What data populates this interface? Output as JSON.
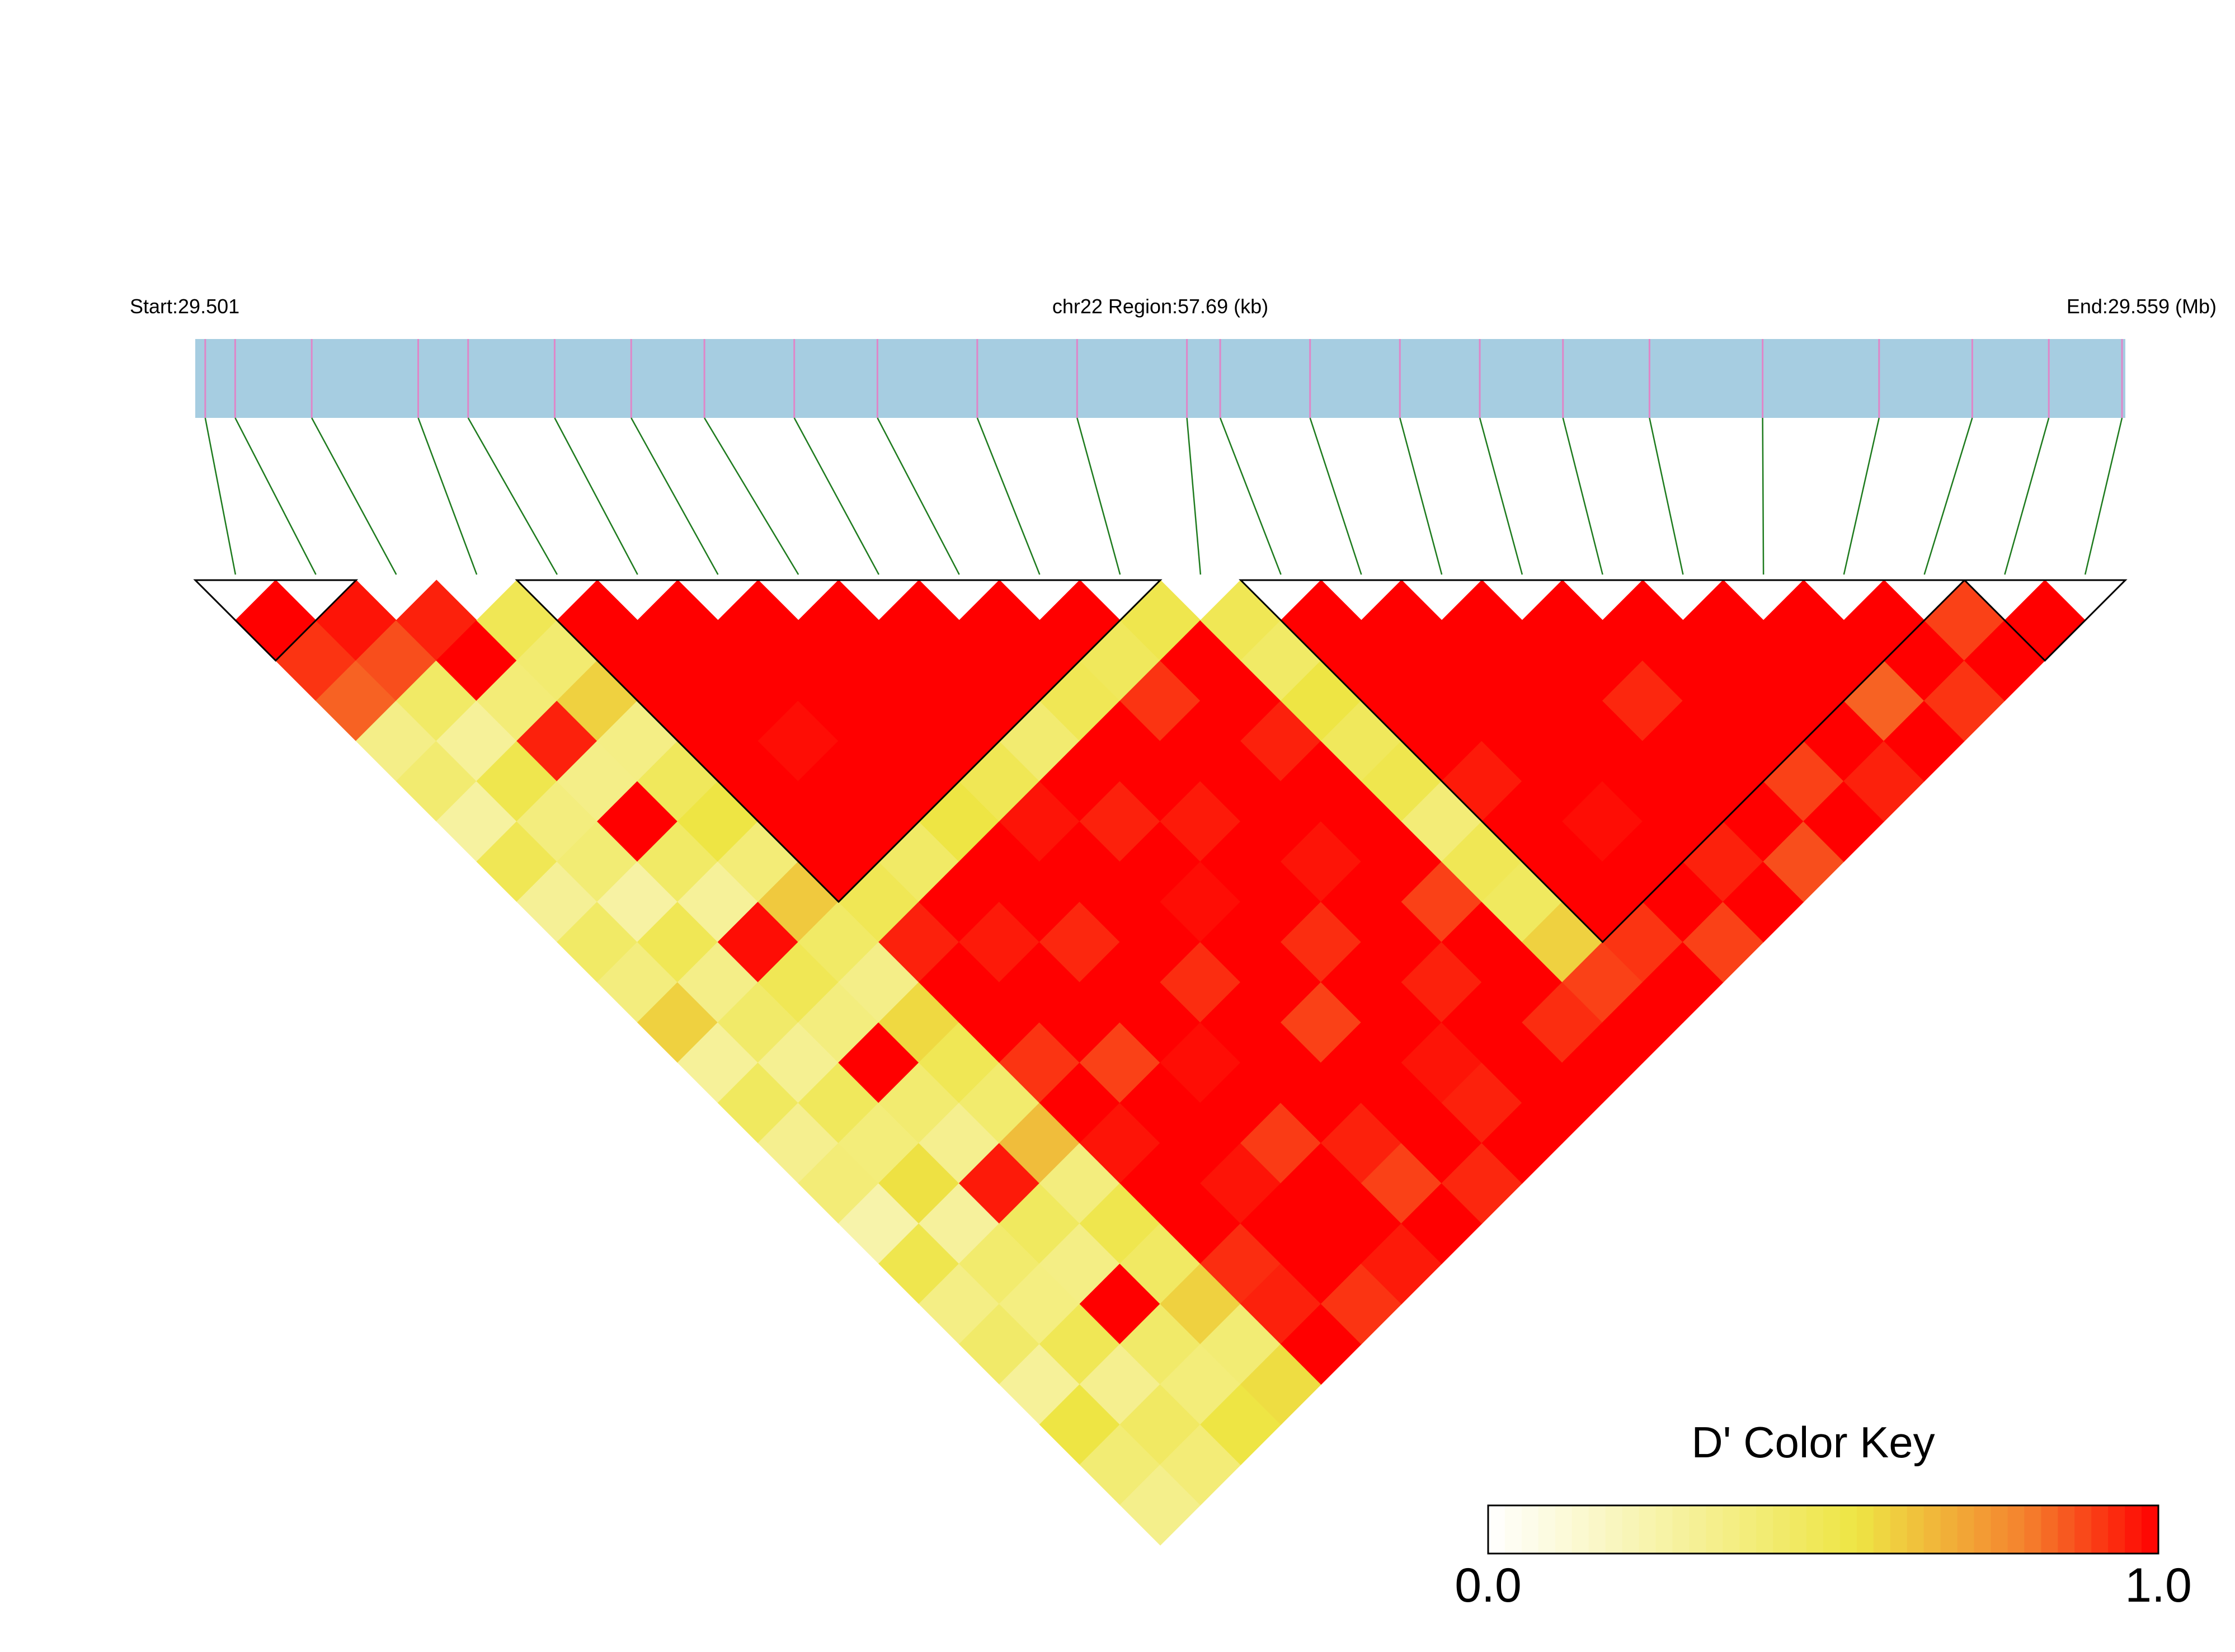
{
  "chart_data": {
    "type": "ld_heatmap",
    "title": "chr22 Region:57.69 (kb)",
    "start": {
      "value": 29.501,
      "label": "Start:29.501"
    },
    "end": {
      "value": 29.559,
      "label": "End:29.559 (Mb)"
    },
    "positions": [
      29.5013,
      29.5022,
      29.5045,
      29.5077,
      29.5092,
      29.5118,
      29.5141,
      29.5163,
      29.519,
      29.5215,
      29.5245,
      29.5275,
      29.5308,
      29.5318,
      29.5345,
      29.5372,
      29.5396,
      29.5421,
      29.5447,
      29.5481,
      29.5516,
      29.5544,
      29.5567,
      29.5589
    ],
    "dprime": [
      [
        1,
        0.92,
        0.85,
        0.35,
        0.42,
        0.28,
        0.5,
        0.31,
        0.45,
        0.38,
        0.6,
        0.3,
        0.47,
        0.33,
        0.4,
        0.25,
        0.52,
        0.36,
        0.44,
        0.3,
        0.55,
        0.41,
        0.34
      ],
      [
        0.97,
        0.88,
        0.45,
        0.3,
        0.52,
        0.38,
        0.41,
        0.27,
        0.5,
        0.35,
        0.44,
        0.32,
        0.48,
        0.39,
        0.56,
        0.29,
        0.43,
        0.37,
        0.5,
        0.33,
        0.46,
        0.4
      ],
      [
        0.95,
        1,
        0.4,
        0.95,
        0.35,
        1,
        0.45,
        0.3,
        0.98,
        0.5,
        0.38,
        1,
        0.42,
        0.33,
        0.96,
        0.47,
        0.36,
        1,
        0.44,
        0.39,
        0.55
      ],
      [
        0.5,
        0.42,
        0.6,
        0.36,
        0.48,
        0.55,
        0.4,
        0.62,
        0.45,
        0.35,
        0.58,
        0.5,
        0.43,
        0.65,
        0.38,
        0.52,
        0.46,
        0.6,
        0.41,
        0.57
      ],
      [
        1,
        1,
        1,
        1,
        1,
        1,
        1,
        0.5,
        0.95,
        1,
        1,
        0.92,
        1,
        0.97,
        1,
        1,
        0.93,
        0.95,
        1
      ],
      [
        1,
        1,
        1,
        0.98,
        1,
        1,
        0.45,
        1,
        0.96,
        1,
        1,
        0.9,
        1,
        1,
        0.97,
        1,
        1,
        0.92
      ],
      [
        1,
        1,
        1,
        1,
        1,
        0.55,
        1,
        1,
        0.94,
        1,
        1,
        0.98,
        1,
        0.91,
        1,
        1,
        0.96
      ],
      [
        1,
        1,
        1,
        1,
        0.5,
        0.97,
        1,
        1,
        1,
        0.93,
        1,
        1,
        1,
        0.95,
        0.9,
        1
      ],
      [
        1,
        1,
        1,
        0.42,
        1,
        0.95,
        1,
        0.98,
        1,
        1,
        0.9,
        1,
        1,
        1,
        0.94
      ],
      [
        1,
        1,
        0.5,
        1,
        1,
        0.96,
        1,
        1,
        0.93,
        1,
        1,
        0.97,
        0.95,
        1
      ],
      [
        1,
        0.48,
        0.92,
        1,
        1,
        1,
        0.97,
        1,
        1,
        0.95,
        1,
        1,
        1
      ],
      [
        0.52,
        1,
        1,
        0.95,
        1,
        1,
        1,
        0.9,
        1,
        1,
        0.93,
        1
      ],
      [
        0.5,
        0.45,
        0.55,
        0.48,
        0.52,
        0.4,
        0.5,
        0.47,
        0.6,
        0.9,
        1
      ],
      [
        1,
        1,
        1,
        1,
        0.96,
        1,
        1,
        1,
        0.92,
        1
      ],
      [
        1,
        1,
        1,
        1,
        1,
        0.98,
        1,
        1,
        0.9
      ],
      [
        1,
        1,
        1,
        1,
        1,
        1,
        0.95,
        1
      ],
      [
        1,
        1,
        0.94,
        1,
        1,
        1,
        0.88
      ],
      [
        1,
        1,
        1,
        1,
        0.9,
        1
      ],
      [
        1,
        1,
        1,
        1,
        0.95
      ],
      [
        1,
        1,
        0.85,
        1
      ],
      [
        1,
        1,
        0.92
      ],
      [
        0.9,
        1
      ],
      [
        1
      ]
    ],
    "blocks": [
      [
        0,
        1
      ],
      [
        4,
        11
      ],
      [
        13,
        21
      ],
      [
        22,
        23
      ]
    ],
    "bar_color": "#a6cde1",
    "marker_color": "#df86c8",
    "connector_color": "#1e7b1e",
    "colorscale": [
      [
        0,
        "#ffffff"
      ],
      [
        0.55,
        "#eee544"
      ],
      [
        0.8,
        "#f4822e"
      ],
      [
        1,
        "#ff0000"
      ]
    ],
    "key": {
      "title": "D' Color Key",
      "lim": [
        0,
        1
      ],
      "ticks": [
        {
          "value": 0,
          "label": "0.0"
        },
        {
          "value": 1,
          "label": "1.0"
        }
      ]
    }
  }
}
